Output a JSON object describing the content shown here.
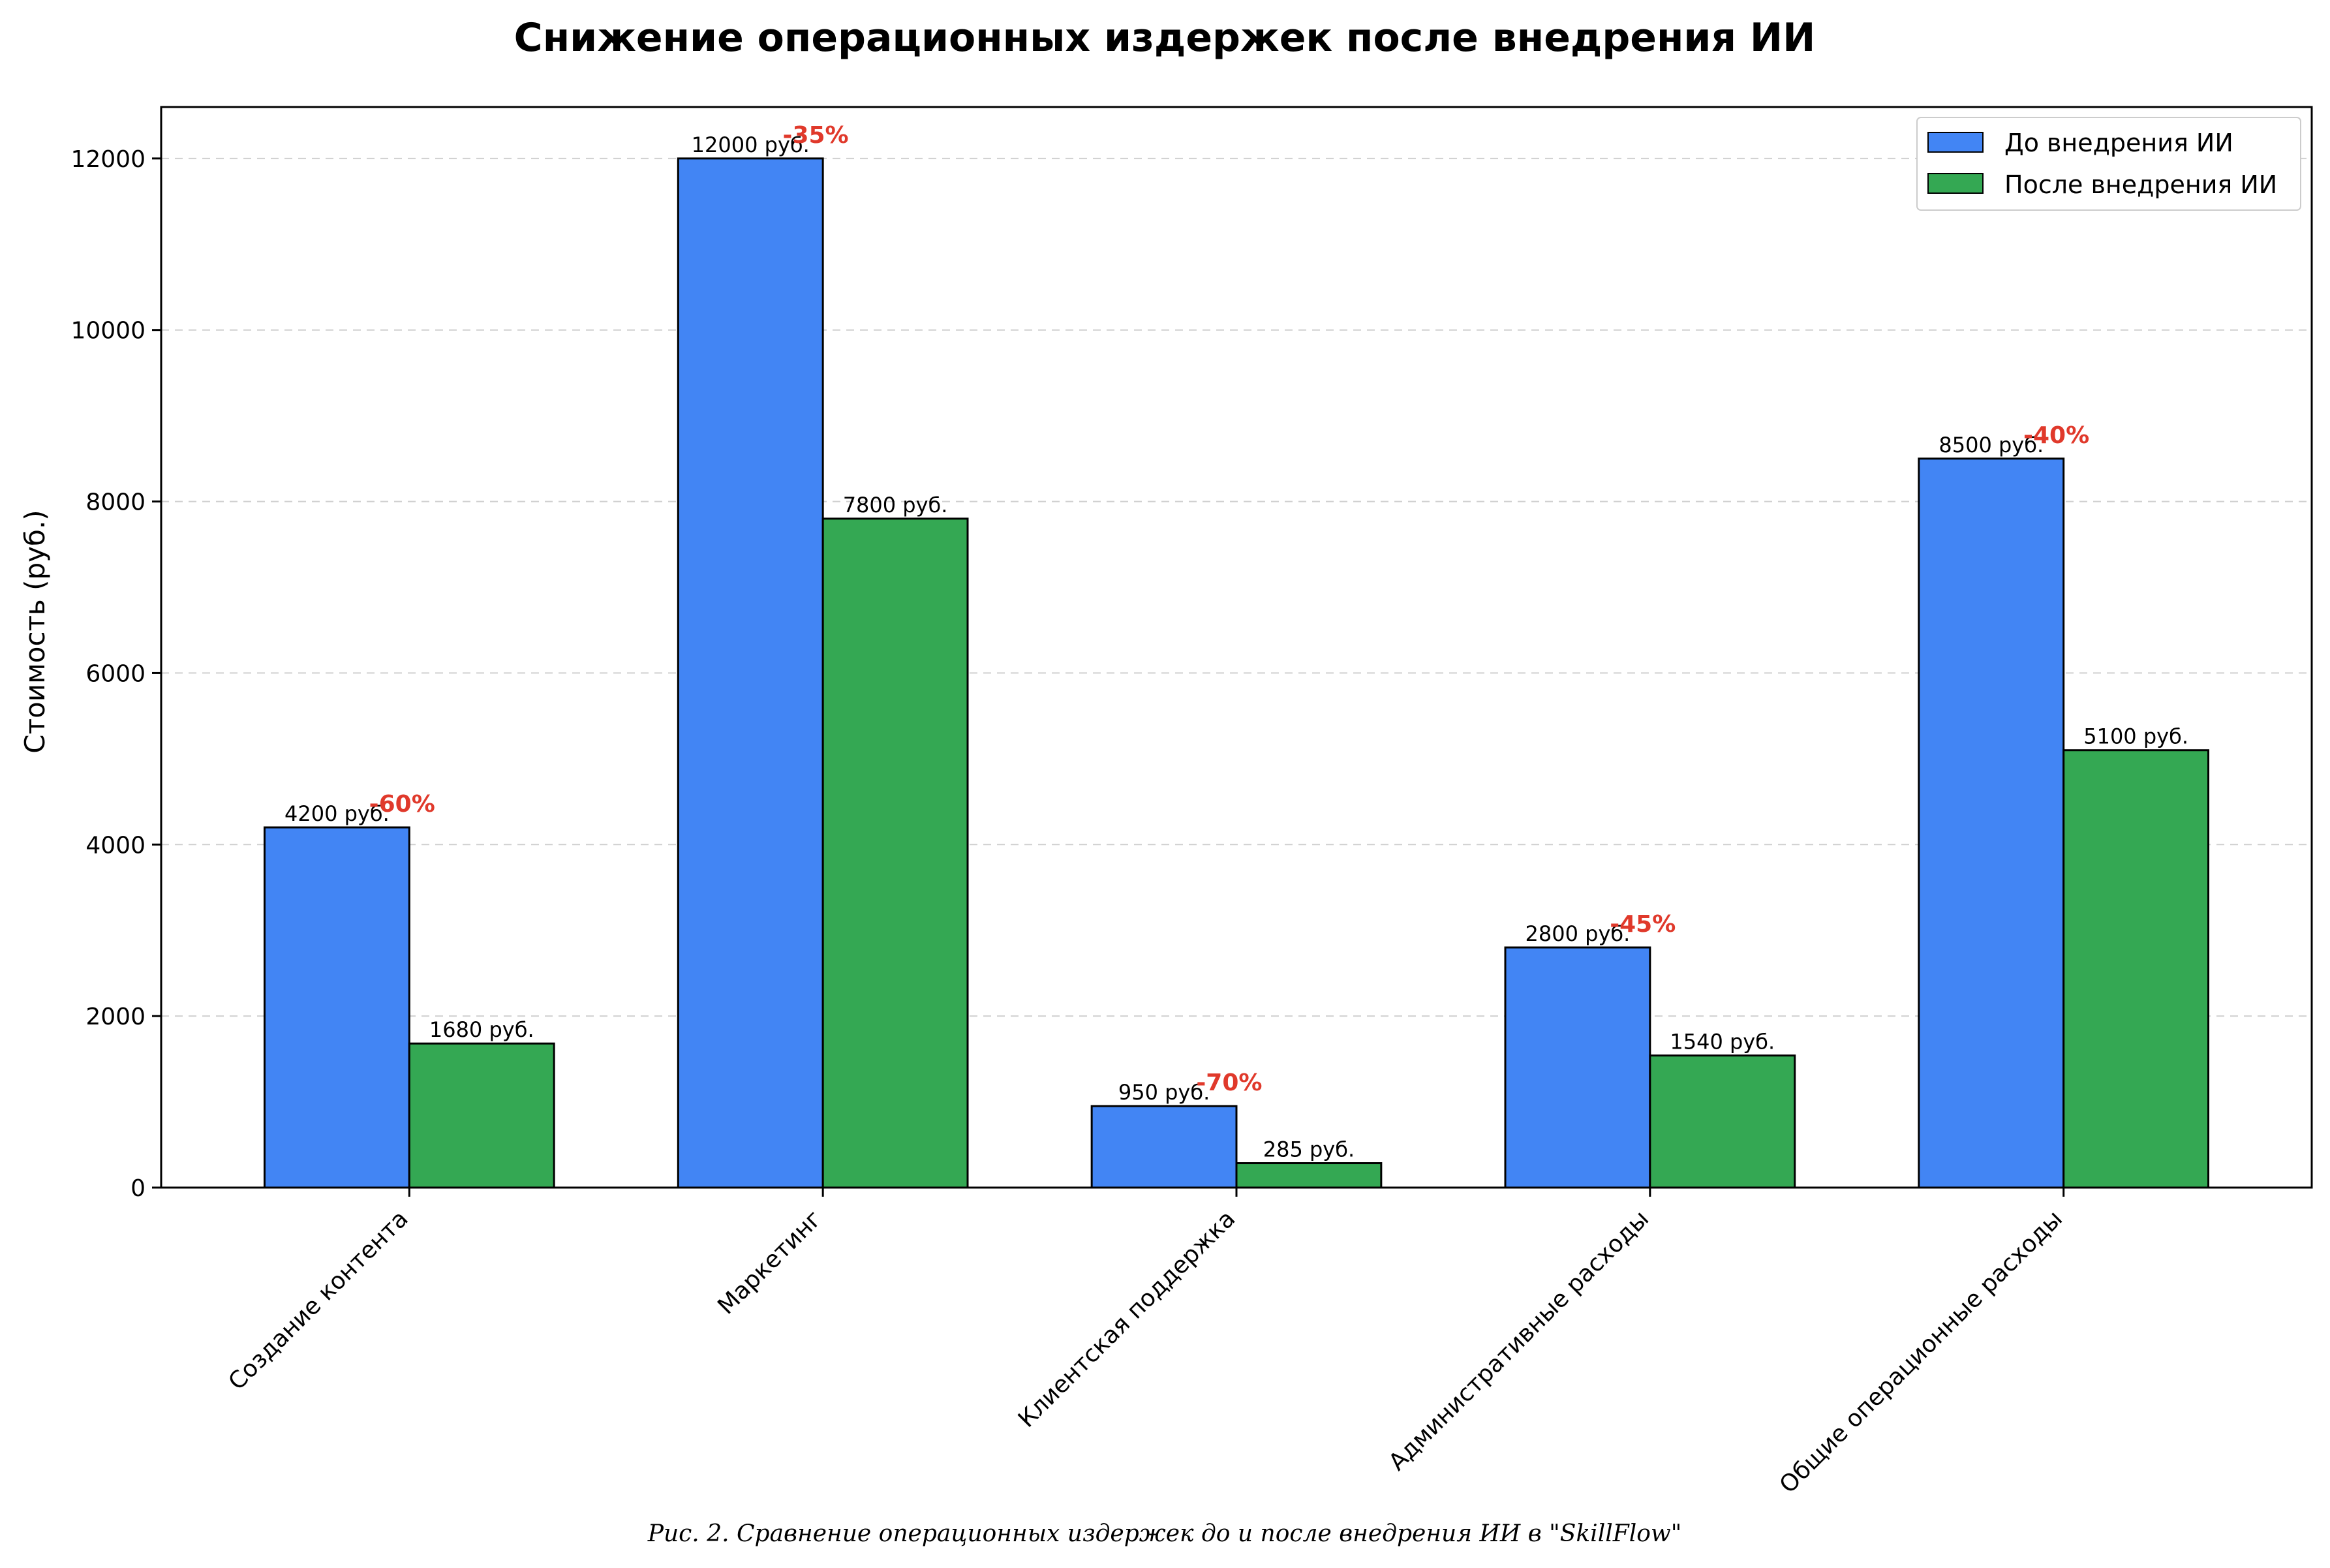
{
  "chart_data": {
    "type": "bar",
    "title": "Снижение операционных издержек после внедрения ИИ",
    "ylabel": "Стоимость (руб.)",
    "xlabel": "",
    "ylim": [
      0,
      12600
    ],
    "yticks": [
      0,
      2000,
      4000,
      6000,
      8000,
      10000,
      12000
    ],
    "grid": "y-dashed",
    "legend_position": "top-right",
    "categories": [
      "Создание контента",
      "Маркетинг",
      "Клиентская поддержка",
      "Административные расходы",
      "Общие операционные расходы"
    ],
    "series": [
      {
        "name": "До внедрения ИИ",
        "color": "#4285f4",
        "values": [
          4200,
          12000,
          950,
          2800,
          8500
        ],
        "labels": [
          "4200 руб.",
          "12000 руб.",
          "950 руб.",
          "2800 руб.",
          "8500 руб."
        ]
      },
      {
        "name": "После внедрения ИИ",
        "color": "#34a853",
        "values": [
          1680,
          7800,
          285,
          1540,
          5100
        ],
        "labels": [
          "1680 руб.",
          "7800 руб.",
          "285 руб.",
          "1540 руб.",
          "5100 руб."
        ]
      }
    ],
    "reduction_labels": [
      "-60%",
      "-35%",
      "-70%",
      "-45%",
      "-40%"
    ],
    "reduction_color": "#e0392b",
    "caption": "Рис. 2. Сравнение операционных издержек до и после внедрения ИИ в \"SkillFlow\""
  }
}
